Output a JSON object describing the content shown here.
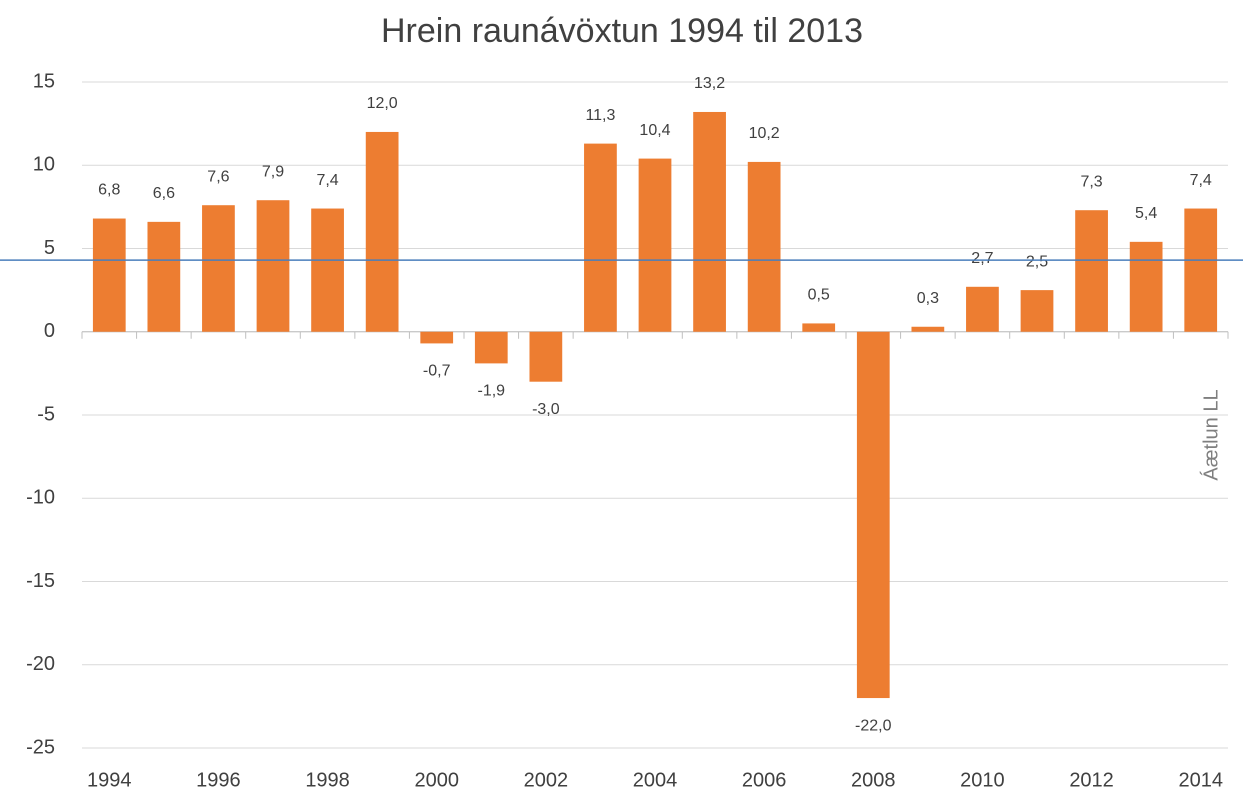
{
  "chart_data": {
    "type": "bar",
    "title": "Hrein raunávöxtun 1994 til 2013",
    "categories": [
      "1994",
      null,
      "1996",
      null,
      "1998",
      null,
      "2000",
      null,
      "2002",
      null,
      "2004",
      null,
      "2006",
      null,
      "2008",
      null,
      "2010",
      null,
      "2012",
      null,
      "2014"
    ],
    "values": [
      6.8,
      6.6,
      7.6,
      7.9,
      7.4,
      12.0,
      -0.7,
      -1.9,
      -3.0,
      11.3,
      10.4,
      13.2,
      10.2,
      0.5,
      -22.0,
      0.3,
      2.7,
      2.5,
      7.3,
      5.4,
      7.4
    ],
    "value_labels": [
      "6,8",
      "6,6",
      "7,6",
      "7,9",
      "7,4",
      "12,0",
      "-0,7",
      "-1,9",
      "-3,0",
      "11,3",
      "10,4",
      "13,2",
      "10,2",
      "0,5",
      "-22,0",
      "0,3",
      "2,7",
      "2,5",
      "7,3",
      "5,4",
      "7,4"
    ],
    "color": "#ed7d31",
    "ylim": [
      -25,
      15
    ],
    "yticks": [
      -25,
      -20,
      -15,
      -10,
      -5,
      0,
      5,
      10,
      15
    ],
    "grid": true,
    "reference_line": 4.3,
    "reference_line_color": "#4a7ebb",
    "annotation": "Áætlun LL"
  }
}
